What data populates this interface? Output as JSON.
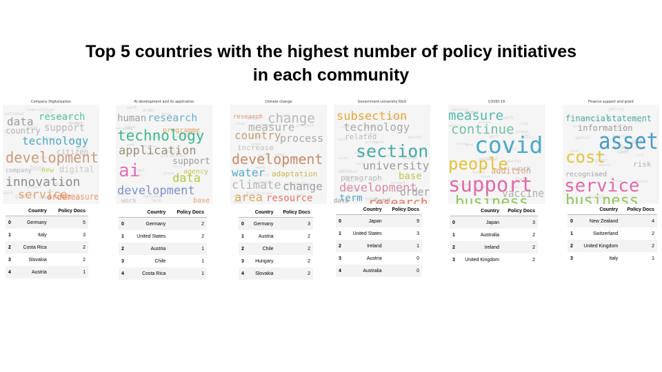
{
  "slide": {
    "title_line1": "Top 5 countries with the highest number of policy initiatives",
    "title_line2": "in each community"
  },
  "table_headers": {
    "country": "Country",
    "docs": "Policy Docs"
  },
  "panels": [
    {
      "caption": "Company Digitalization",
      "words": [
        {
          "t": "data",
          "c": "#9a9a9a"
        },
        {
          "t": "research",
          "c": "#52c1a1"
        },
        {
          "t": "country",
          "c": "#b0b0b0"
        },
        {
          "t": "support",
          "c": "#b8b8b8"
        },
        {
          "t": "technology",
          "c": "#4aa8c4"
        },
        {
          "t": "citizen",
          "c": "#bcbcbc"
        },
        {
          "t": "development",
          "c": "#cc9a7a"
        },
        {
          "t": "company",
          "c": "#b5b5b5"
        },
        {
          "t": "new",
          "c": "#b6d356"
        },
        {
          "t": "digital",
          "c": "#c7c7c7"
        },
        {
          "t": "innovation",
          "c": "#8a8a8a"
        },
        {
          "t": "service",
          "c": "#e8a06a"
        },
        {
          "t": "order",
          "c": "#dc8a5e"
        },
        {
          "t": "measure",
          "c": "#ee9a6b"
        }
      ],
      "rows": [
        {
          "i": "0",
          "country": "Germany",
          "docs": "5"
        },
        {
          "i": "1",
          "country": "Italy",
          "docs": "3"
        },
        {
          "i": "2",
          "country": "Costa Rica",
          "docs": "2"
        },
        {
          "i": "3",
          "country": "Slovakia",
          "docs": "2"
        },
        {
          "i": "4",
          "country": "Austria",
          "docs": "1"
        }
      ]
    },
    {
      "caption": "AI development and its application",
      "words": [
        {
          "t": "human",
          "c": "#a0a0a0"
        },
        {
          "t": "research",
          "c": "#6ab0c9"
        },
        {
          "t": "programme",
          "c": "#e6a15e"
        },
        {
          "t": "technology",
          "c": "#3fb58e"
        },
        {
          "t": "application",
          "c": "#9c8e78"
        },
        {
          "t": "support",
          "c": "#9a9a9a"
        },
        {
          "t": "agency",
          "c": "#c9c14f"
        },
        {
          "t": "ai",
          "c": "#e070b8"
        },
        {
          "t": "data",
          "c": "#b5c940"
        },
        {
          "t": "development",
          "c": "#7a92c9"
        },
        {
          "t": "work",
          "c": "#bfbfbf"
        },
        {
          "t": "base",
          "c": "#e4a070"
        }
      ],
      "rows": [
        {
          "i": "0",
          "country": "Germany",
          "docs": "2"
        },
        {
          "i": "1",
          "country": "United States",
          "docs": "2"
        },
        {
          "i": "2",
          "country": "Austria",
          "docs": "1"
        },
        {
          "i": "3",
          "country": "Chile",
          "docs": "1"
        },
        {
          "i": "4",
          "country": "Costa Rica",
          "docs": "1"
        }
      ]
    },
    {
      "caption": "Climate change",
      "words": [
        {
          "t": "research",
          "c": "#e48f78"
        },
        {
          "t": "change",
          "c": "#b8b8b8"
        },
        {
          "t": "measure",
          "c": "#b0b0b0"
        },
        {
          "t": "country",
          "c": "#c4a07a"
        },
        {
          "t": "process",
          "c": "#a8a8a8"
        },
        {
          "t": "increase",
          "c": "#c0c0c0"
        },
        {
          "t": "development",
          "c": "#c98a6a"
        },
        {
          "t": "water",
          "c": "#5aa8c9"
        },
        {
          "t": "adaptation",
          "c": "#c9b34e"
        },
        {
          "t": "climate",
          "c": "#b5b5b5"
        },
        {
          "t": "change",
          "c": "#9c9c9c"
        },
        {
          "t": "area",
          "c": "#d9a85e"
        },
        {
          "t": "resource",
          "c": "#e07a6a"
        }
      ],
      "rows": [
        {
          "i": "0",
          "country": "Germany",
          "docs": "3"
        },
        {
          "i": "1",
          "country": "Austria",
          "docs": "2"
        },
        {
          "i": "2",
          "country": "Chile",
          "docs": "2"
        },
        {
          "i": "3",
          "country": "Hungary",
          "docs": "2"
        },
        {
          "i": "4",
          "country": "Slovakia",
          "docs": "2"
        }
      ]
    },
    {
      "caption": "Government-university R&D",
      "words": [
        {
          "t": "subsection",
          "c": "#e6a63c"
        },
        {
          "t": "technology",
          "c": "#a8a8a8"
        },
        {
          "t": "related",
          "c": "#b8b8b8"
        },
        {
          "t": "section",
          "c": "#4aa8a4"
        },
        {
          "t": "university",
          "c": "#9a9a9a"
        },
        {
          "t": "paragraph",
          "c": "#b6b6b6"
        },
        {
          "t": "base",
          "c": "#c9c14f"
        },
        {
          "t": "development",
          "c": "#d68aa9"
        },
        {
          "t": "term",
          "c": "#5aa8c9"
        },
        {
          "t": "fund",
          "c": "#b0b0b0"
        },
        {
          "t": "order",
          "c": "#a0a0a0"
        },
        {
          "t": "data",
          "c": "#9a9a9a"
        },
        {
          "t": "research",
          "c": "#e07a5e"
        }
      ],
      "rows": [
        {
          "i": "0",
          "country": "Japan",
          "docs": "9"
        },
        {
          "i": "1",
          "country": "United States",
          "docs": "3"
        },
        {
          "i": "2",
          "country": "Ireland",
          "docs": "1"
        },
        {
          "i": "3",
          "country": "Austria",
          "docs": "0"
        },
        {
          "i": "4",
          "country": "Australia",
          "docs": "0"
        }
      ]
    },
    {
      "caption": "COVID-19",
      "words": [
        {
          "t": "measure",
          "c": "#52b9a8"
        },
        {
          "t": "continue",
          "c": "#6fc1a6"
        },
        {
          "t": "covid",
          "c": "#4aa8c4"
        },
        {
          "t": "people",
          "c": "#e0c43c"
        },
        {
          "t": "addition",
          "c": "#e0a07a"
        },
        {
          "t": "work",
          "c": "#b6b6b6"
        },
        {
          "t": "support",
          "c": "#e06aa8"
        },
        {
          "t": "vaccine",
          "c": "#b0b0b0"
        },
        {
          "t": "business",
          "c": "#8ec65a"
        }
      ],
      "rows": [
        {
          "i": "0",
          "country": "Japan",
          "docs": "3"
        },
        {
          "i": "1",
          "country": "Australia",
          "docs": "2"
        },
        {
          "i": "2",
          "country": "Ireland",
          "docs": "2"
        },
        {
          "i": "3",
          "country": "United Kingdom",
          "docs": "2"
        }
      ]
    },
    {
      "caption": "Finance support and grant",
      "words": [
        {
          "t": "financial",
          "c": "#4aa8a4"
        },
        {
          "t": "statement",
          "c": "#4aa8a4"
        },
        {
          "t": "information",
          "c": "#9a9a9a"
        },
        {
          "t": "asset",
          "c": "#4a9ac4"
        },
        {
          "t": "cost",
          "c": "#e0c43c"
        },
        {
          "t": "risk",
          "c": "#b0b0b0"
        },
        {
          "t": "recognised",
          "c": "#a8a8a8"
        },
        {
          "t": "service",
          "c": "#e06aa8"
        },
        {
          "t": "business",
          "c": "#8ec65a"
        }
      ],
      "rows": [
        {
          "i": "0",
          "country": "New Zealand",
          "docs": "4"
        },
        {
          "i": "1",
          "country": "Switzerland",
          "docs": "2"
        },
        {
          "i": "2",
          "country": "United Kingdom",
          "docs": "2"
        },
        {
          "i": "3",
          "country": "Italy",
          "docs": "1"
        }
      ]
    }
  ]
}
